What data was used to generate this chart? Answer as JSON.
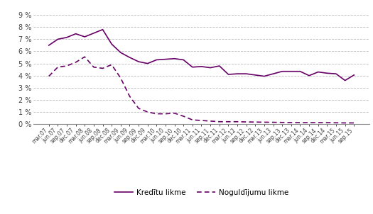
{
  "x_labels": [
    "mar.07",
    "jun.07",
    "sep.07",
    "dec.07",
    "mar.08",
    "jun.08",
    "sep.08",
    "dec.08",
    "mar.09",
    "jun.09",
    "sep.09",
    "dec.09",
    "mar.10",
    "jun.10",
    "sep.10",
    "dec.10",
    "mar.11",
    "jun.11",
    "sep.11",
    "dec.11",
    "mar.12",
    "jun.12",
    "sep.12",
    "dec.12",
    "mar.13",
    "jun.13",
    "sep.13",
    "dec.13",
    "mar.14",
    "jun.14",
    "sep.14",
    "dec.14",
    "mar.15",
    "jun.15",
    "sep.15"
  ],
  "kreditu": [
    6.5,
    7.0,
    7.15,
    7.45,
    7.2,
    7.5,
    7.8,
    6.6,
    5.9,
    5.5,
    5.15,
    5.0,
    5.3,
    5.35,
    5.4,
    5.3,
    4.7,
    4.75,
    4.65,
    4.8,
    4.1,
    4.15,
    4.15,
    4.05,
    3.95,
    4.15,
    4.35,
    4.35,
    4.35,
    4.0,
    4.3,
    4.2,
    4.15,
    3.6,
    4.05
  ],
  "noguldijumu": [
    3.95,
    4.7,
    4.8,
    5.1,
    5.55,
    4.7,
    4.6,
    4.9,
    3.8,
    2.3,
    1.3,
    1.0,
    0.85,
    0.85,
    0.9,
    0.65,
    0.35,
    0.3,
    0.25,
    0.2,
    0.2,
    0.2,
    0.18,
    0.17,
    0.16,
    0.15,
    0.14,
    0.13,
    0.12,
    0.12,
    0.12,
    0.12,
    0.11,
    0.1,
    0.1
  ],
  "color": "#660066",
  "ylim": [
    0,
    9
  ],
  "yticks": [
    0,
    1,
    2,
    3,
    4,
    5,
    6,
    7,
    8,
    9
  ],
  "legend_kreditu": "Kredītu likme",
  "legend_noguldijumu": "Noguldījumu likme"
}
